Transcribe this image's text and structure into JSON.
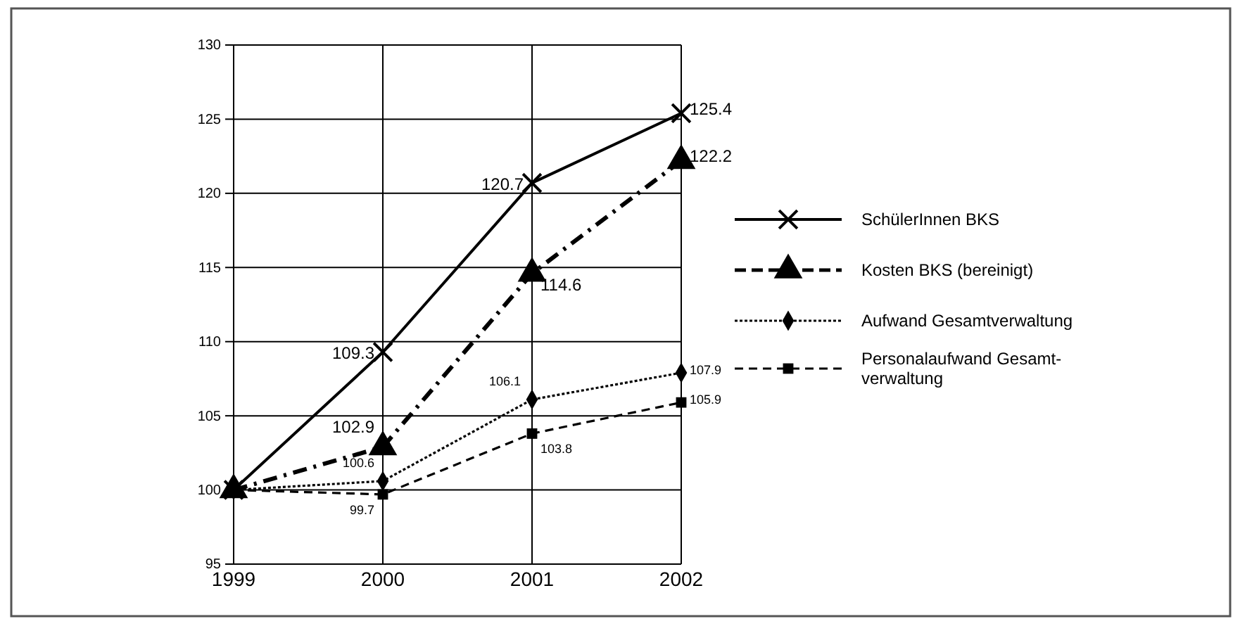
{
  "chart_data": {
    "type": "line",
    "x": [
      1999,
      2000,
      2001,
      2002
    ],
    "xlim": [
      1999,
      2002
    ],
    "xticks": [
      1999,
      2000,
      2001,
      2002
    ],
    "ylim": [
      95,
      130
    ],
    "yticks": [
      95,
      100,
      105,
      110,
      115,
      120,
      125,
      130
    ],
    "grid": true,
    "legend": "right",
    "series": [
      {
        "name": "SchülerInnen BKS",
        "color": "#000000",
        "marker": "cross",
        "line_style": "solid",
        "values": [
          100,
          109.3,
          120.7,
          125.4
        ],
        "value_labels": [
          null,
          "109.3",
          "120.7",
          "125.4"
        ]
      },
      {
        "name": "Kosten BKS (bereinigt)",
        "color": "#000000",
        "marker": "triangle",
        "line_style": "dashdot",
        "values": [
          100,
          102.9,
          114.6,
          122.2
        ],
        "value_labels": [
          null,
          "102.9",
          "114.6",
          "122.2"
        ]
      },
      {
        "name": "Aufwand Gesamtverwaltung",
        "color": "#000000",
        "marker": "diamond",
        "line_style": "dotted",
        "values": [
          100,
          100.6,
          106.1,
          107.9
        ],
        "value_labels": [
          null,
          "100.6",
          "106.1",
          "107.9"
        ]
      },
      {
        "name": "Personalaufwand Gesamt-verwaltung",
        "color": "#000000",
        "marker": "square",
        "line_style": "dashed",
        "values": [
          100,
          99.7,
          103.8,
          105.9
        ],
        "value_labels": [
          null,
          "99.7",
          "103.8",
          "105.9"
        ]
      }
    ]
  }
}
